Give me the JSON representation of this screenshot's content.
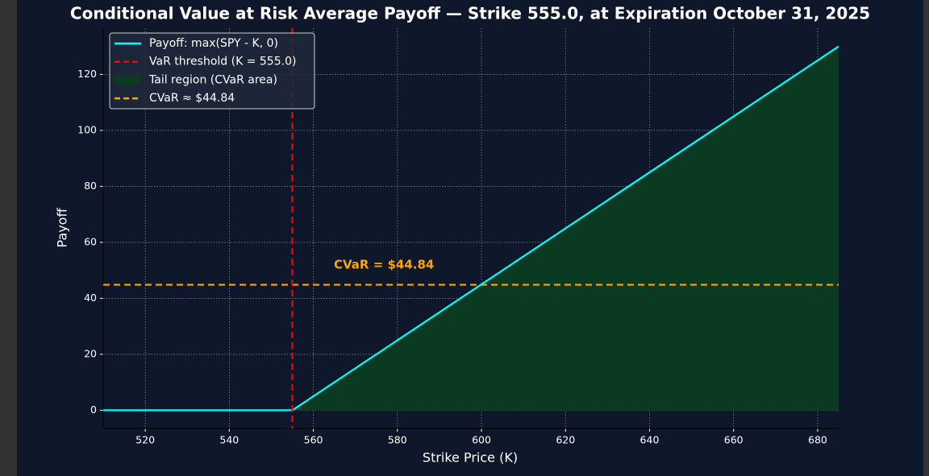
{
  "chart_data": {
    "type": "line",
    "title": "Conditional Value at Risk Average Payoff — Strike 555.0, at Expiration October 31, 2025",
    "x_label": "Strike Price (K)",
    "y_label": "Payoff",
    "xlim": [
      510,
      685
    ],
    "ylim": [
      -6.5,
      136.5
    ],
    "xticks": [
      520,
      540,
      560,
      580,
      600,
      620,
      640,
      660,
      680
    ],
    "yticks": [
      0,
      20,
      40,
      60,
      80,
      100,
      120
    ],
    "grid": true,
    "legend": "upper left",
    "series": [
      {
        "name": "Payoff: max(SPY - K, 0)",
        "color": "#00ffff",
        "x": [
          510,
          555,
          685
        ],
        "values": [
          0,
          0,
          130
        ]
      },
      {
        "name": "VaR threshold (K = 555.0)",
        "color": "#ff0000",
        "linestyle": "dashed",
        "x": 555
      },
      {
        "name": "Tail region (CVaR area)",
        "color": "#0b3a22",
        "x": [
          555,
          685
        ],
        "values": [
          0,
          130
        ]
      },
      {
        "name": "CVaR ≈ $44.84",
        "color": "#ffa500",
        "linestyle": "dashed",
        "value": 44.84
      }
    ],
    "annotation": {
      "text": "CVaR = $44.84",
      "color": "#ffa500"
    }
  }
}
